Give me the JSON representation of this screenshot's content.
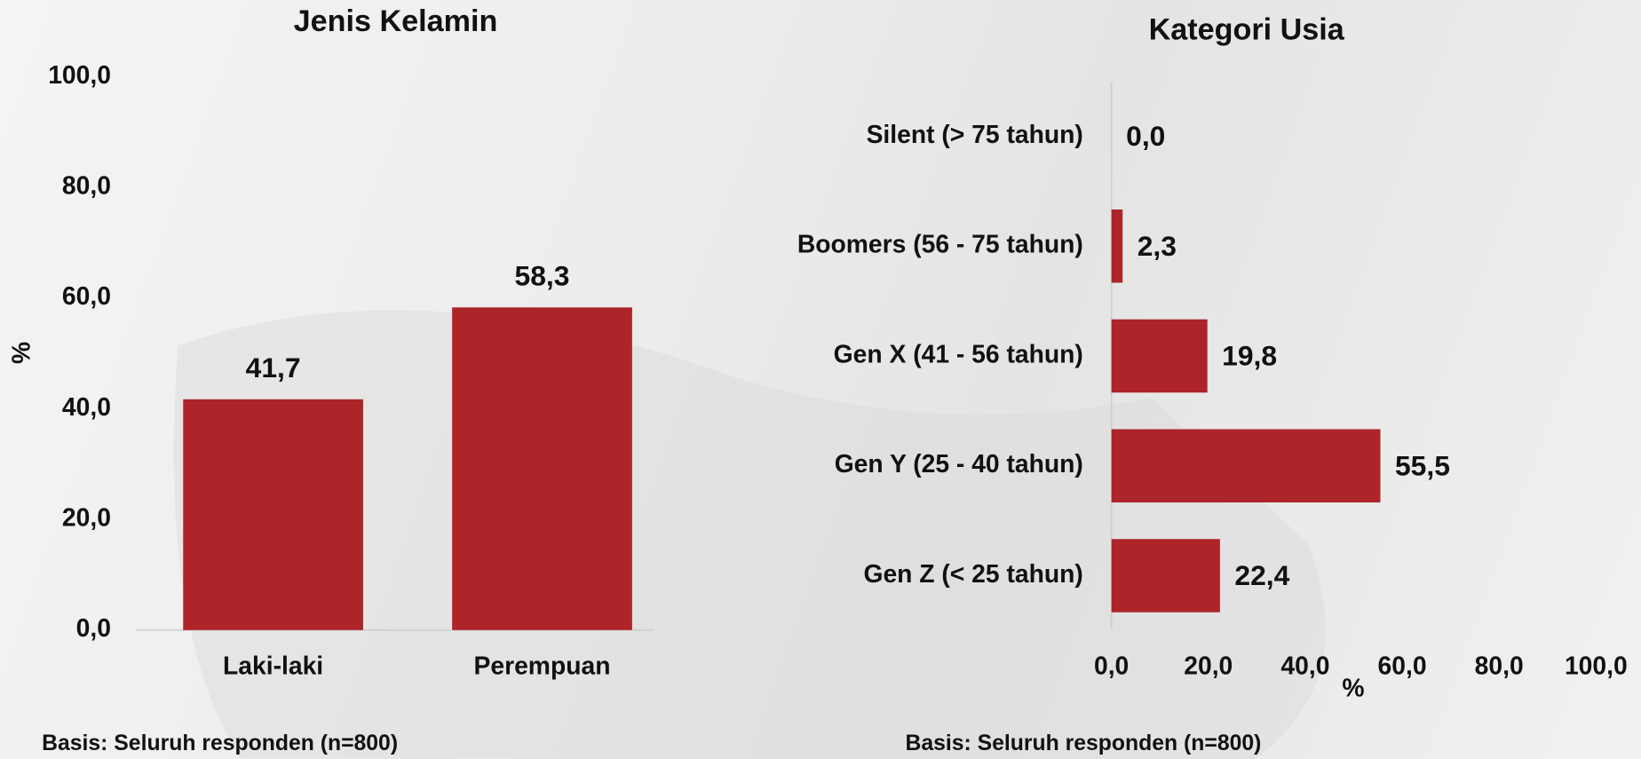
{
  "chart_data": [
    {
      "type": "bar",
      "title": "Jenis Kelamin",
      "y_label": "%",
      "categories": [
        "Laki-laki",
        "Perempuan"
      ],
      "values": [
        41.7,
        58.3
      ],
      "value_labels": [
        "41,7",
        "58,3"
      ],
      "color": "#ad2429",
      "ylim": [
        0,
        100
      ],
      "yticks": [
        {
          "value": 0,
          "label": "0,0"
        },
        {
          "value": 20,
          "label": "20,0"
        },
        {
          "value": 40,
          "label": "40,0"
        },
        {
          "value": 60,
          "label": "60,0"
        },
        {
          "value": 80,
          "label": "80,0"
        },
        {
          "value": 100,
          "label": "100,0"
        }
      ],
      "note": "Basis: Seluruh responden (n=800)"
    },
    {
      "type": "hbar",
      "title": "Kategori Usia",
      "x_label": "%",
      "categories": [
        "Silent (> 75 tahun)",
        "Boomers (56 - 75 tahun)",
        "Gen X (41 - 56 tahun)",
        "Gen Y (25 - 40 tahun)",
        "Gen Z (< 25 tahun)"
      ],
      "values": [
        0.0,
        2.3,
        19.8,
        55.5,
        22.4
      ],
      "value_labels": [
        "0,0",
        "2,3",
        "19,8",
        "55,5",
        "22,4"
      ],
      "color": "#ad2429",
      "xlim": [
        0,
        100
      ],
      "xticks": [
        {
          "value": 0,
          "label": "0,0"
        },
        {
          "value": 20,
          "label": "20,0"
        },
        {
          "value": 40,
          "label": "40,0"
        },
        {
          "value": 60,
          "label": "60,0"
        },
        {
          "value": 80,
          "label": "80,0"
        },
        {
          "value": 100,
          "label": "100,0"
        }
      ],
      "note": "Basis: Seluruh responden (n=800)"
    }
  ]
}
